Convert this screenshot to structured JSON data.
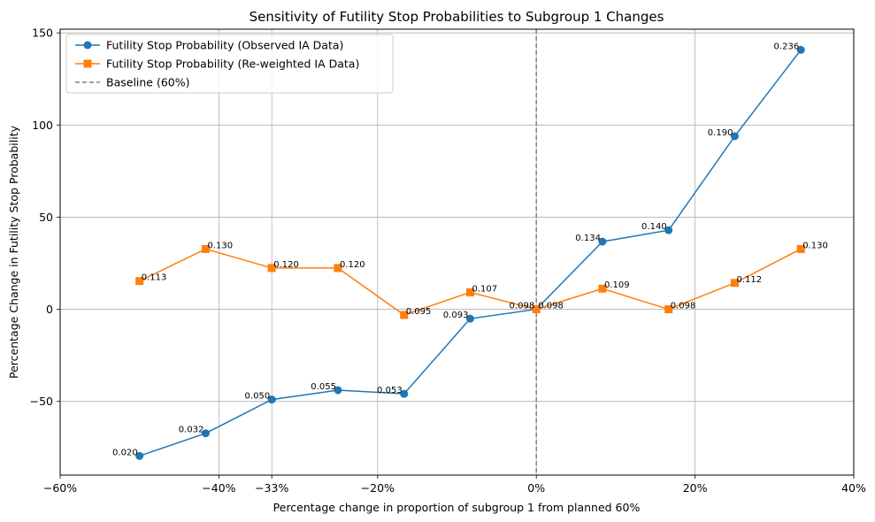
{
  "chart_data": {
    "type": "line",
    "title": "Sensitivity of Futility Stop Probabilities to Subgroup 1 Changes",
    "xlabel": "Percentage change in proportion of subgroup 1 from planned 60%",
    "ylabel": "Percentage Change in Futility Stop Probability",
    "xlim": [
      -60,
      40
    ],
    "ylim": [
      -90,
      152
    ],
    "x_ticks": [
      {
        "value": -60,
        "label": "−60%"
      },
      {
        "value": -40,
        "label": "−40%"
      },
      {
        "value": -33.333,
        "label": "−33%"
      },
      {
        "value": -20,
        "label": "−20%"
      },
      {
        "value": 0,
        "label": "0%"
      },
      {
        "value": 20,
        "label": "20%"
      },
      {
        "value": 40,
        "label": "40%"
      }
    ],
    "y_ticks": [
      {
        "value": -50,
        "label": "−50"
      },
      {
        "value": 0,
        "label": "0"
      },
      {
        "value": 50,
        "label": "50"
      },
      {
        "value": 100,
        "label": "100"
      },
      {
        "value": 150,
        "label": "150"
      }
    ],
    "grid": true,
    "legend_position": "top-left",
    "x": [
      -50,
      -41.667,
      -33.333,
      -25,
      -16.667,
      -8.333,
      0,
      8.333,
      16.667,
      25,
      33.333
    ],
    "series": [
      {
        "name": "Futility Stop Probability (Observed IA Data)",
        "color": "#1f77b4",
        "marker": "circle",
        "label_side": "left",
        "values": [
          -79.6,
          -67.3,
          -49.0,
          -43.9,
          -45.9,
          -5.1,
          0,
          36.7,
          42.9,
          93.9,
          140.8
        ],
        "labels": [
          "0.020",
          "0.032",
          "0.050",
          "0.055",
          "0.053",
          "0.093",
          "0.098",
          "0.134",
          "0.140",
          "0.190",
          "0.236"
        ]
      },
      {
        "name": "Futility Stop Probability (Re-weighted IA Data)",
        "color": "#ff7f0e",
        "marker": "square",
        "label_side": "right",
        "values": [
          15.3,
          32.7,
          22.4,
          22.4,
          -3.1,
          9.2,
          0,
          11.2,
          0,
          14.3,
          32.7
        ],
        "labels": [
          "0.113",
          "0.130",
          "0.120",
          "0.120",
          "0.095",
          "0.107",
          "0.098",
          "0.109",
          "0.098",
          "0.112",
          "0.130"
        ]
      }
    ],
    "baseline": {
      "name": "Baseline (60%)",
      "x": 0,
      "color": "#808080"
    }
  }
}
